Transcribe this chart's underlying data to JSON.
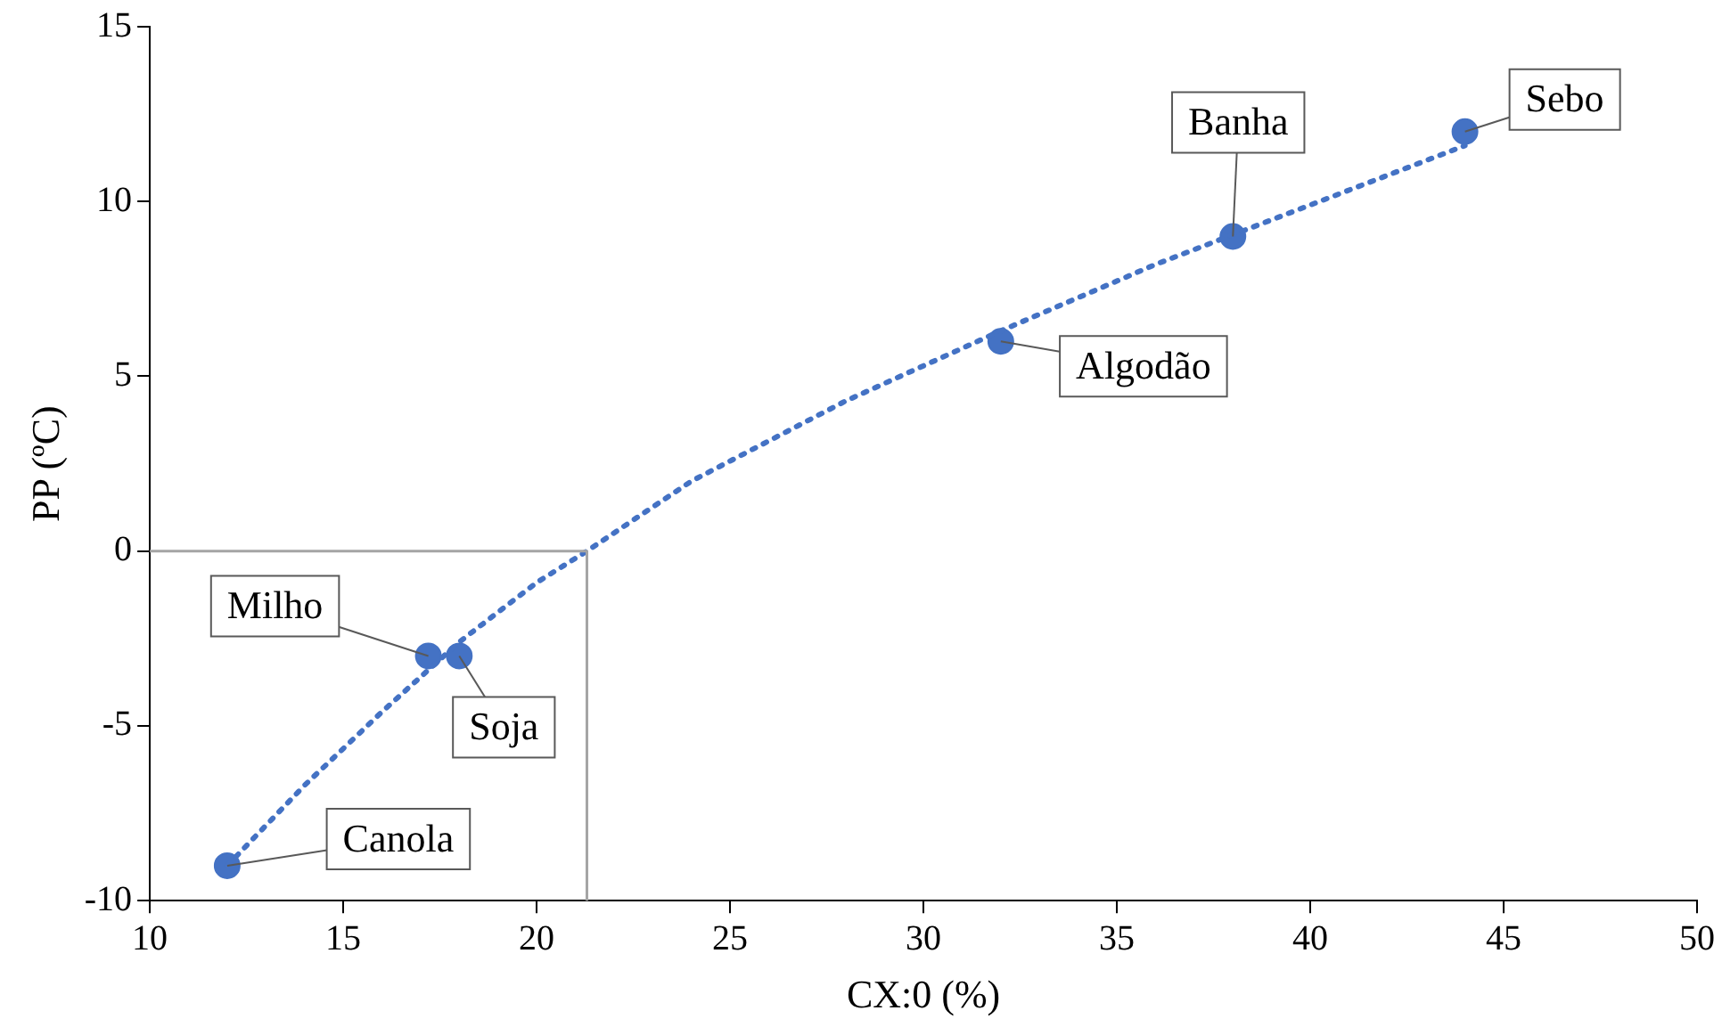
{
  "chart_data": {
    "type": "scatter",
    "xlabel": "CX:0 (%)",
    "ylabel": "PP (ºC)",
    "xlim": [
      10,
      50
    ],
    "xticks": [
      10,
      15,
      20,
      25,
      30,
      35,
      40,
      45,
      50
    ],
    "ylim": [
      -10,
      15
    ],
    "yticks": [
      -10,
      -5,
      0,
      5,
      10,
      15
    ],
    "grid": false,
    "legend": false,
    "marker": "circle",
    "series": [
      {
        "type": "line",
        "marker": "none",
        "color": "#a5a5a5",
        "line_style": "solid",
        "x": [
          10,
          21.3,
          21.3
        ],
        "values": [
          0,
          0,
          -10
        ]
      },
      {
        "type": "line",
        "marker": "none",
        "color": "#4472c4",
        "line_style": "dotted",
        "x": [
          12,
          14,
          16,
          18,
          20,
          21.3,
          24,
          28,
          32,
          36,
          40,
          44
        ],
        "values": [
          -9,
          -6.7,
          -4.6,
          -2.6,
          -0.9,
          0,
          2,
          4.3,
          6.3,
          8.2,
          9.9,
          11.6
        ]
      },
      {
        "color": "#4472c4",
        "x": [
          12,
          17.2,
          18,
          32,
          38,
          44
        ],
        "values": [
          -9,
          -3,
          -3,
          6,
          9,
          12
        ]
      }
    ],
    "annotations": [
      {
        "text": "Canola",
        "x": 12,
        "y": -9
      },
      {
        "text": "Milho",
        "x": 17.2,
        "y": -3
      },
      {
        "text": "Soja",
        "x": 18,
        "y": -3
      },
      {
        "text": "Algodão",
        "x": 32,
        "y": 6
      },
      {
        "text": "Banha",
        "x": 38,
        "y": 9
      },
      {
        "text": "Sebo",
        "x": 44,
        "y": 12
      }
    ]
  }
}
